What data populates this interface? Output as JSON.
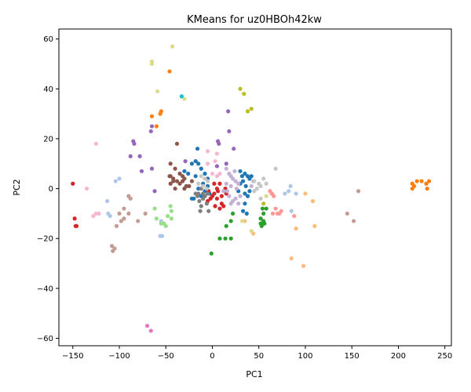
{
  "chart_data": {
    "type": "scatter",
    "title": "KMeans for uz0HBOh42kw",
    "xlabel": "PC1",
    "ylabel": "PC2",
    "xlim": [
      -165,
      257
    ],
    "ylim": [
      -63,
      64
    ],
    "xticks": [
      -150,
      -100,
      -50,
      0,
      50,
      100,
      150,
      200,
      250
    ],
    "yticks": [
      -60,
      -40,
      -20,
      0,
      20,
      40,
      60
    ],
    "grid": false,
    "legend": "none",
    "series": [
      {
        "color": "#1f77b4",
        "points": [
          [
            -22,
            10
          ],
          [
            -18,
            11
          ],
          [
            -15,
            10
          ],
          [
            -12,
            8
          ],
          [
            -8,
            6
          ],
          [
            -5,
            4
          ],
          [
            -10,
            2
          ],
          [
            -15,
            0
          ],
          [
            -20,
            -4
          ],
          [
            -22,
            -4
          ],
          [
            -12,
            -3
          ],
          [
            -8,
            -1
          ],
          [
            -5,
            1
          ],
          [
            -3,
            -2
          ],
          [
            -18,
            5
          ],
          [
            -16,
            16
          ],
          [
            30,
            7
          ],
          [
            32,
            5
          ],
          [
            35,
            6
          ],
          [
            38,
            5
          ],
          [
            40,
            4
          ],
          [
            42,
            5
          ],
          [
            30,
            2
          ],
          [
            33,
            3
          ],
          [
            36,
            1
          ],
          [
            35,
            -2
          ],
          [
            38,
            -3
          ],
          [
            40,
            -1
          ],
          [
            28,
            -1
          ],
          [
            35,
            -6
          ],
          [
            33,
            -9
          ],
          [
            37,
            -10
          ],
          [
            -30,
            7
          ],
          [
            -26,
            6
          ]
        ]
      },
      {
        "color": "#ff7f0e",
        "points": [
          [
            -65,
            29
          ],
          [
            -60,
            25
          ],
          [
            -56,
            30
          ],
          [
            -55,
            31
          ],
          [
            -46,
            47
          ],
          [
            215,
            2
          ],
          [
            215,
            0
          ],
          [
            217,
            1
          ],
          [
            220,
            3
          ],
          [
            225,
            3
          ],
          [
            230,
            2
          ],
          [
            231,
            0
          ],
          [
            233,
            3
          ]
        ]
      },
      {
        "color": "#aec7e8",
        "points": [
          [
            -113,
            -5
          ],
          [
            -110,
            -11
          ],
          [
            -112,
            -10
          ],
          [
            -100,
            4
          ],
          [
            -104,
            3
          ],
          [
            84,
            1
          ],
          [
            78,
            -2
          ],
          [
            82,
            -1
          ],
          [
            90,
            -2
          ],
          [
            85,
            -9
          ],
          [
            -55,
            -13
          ],
          [
            -56,
            -19
          ],
          [
            -54,
            -19
          ]
        ]
      },
      {
        "color": "#ffbb78",
        "points": [
          [
            100,
            -2
          ],
          [
            108,
            -5
          ],
          [
            110,
            -15
          ],
          [
            90,
            -16
          ],
          [
            98,
            -31
          ],
          [
            85,
            -28
          ],
          [
            44,
            -18
          ],
          [
            35,
            -13
          ]
        ]
      },
      {
        "color": "#2ca02c",
        "points": [
          [
            52,
            -12
          ],
          [
            55,
            -10
          ],
          [
            58,
            -8
          ],
          [
            54,
            -8
          ],
          [
            52,
            -14
          ],
          [
            56,
            -14
          ],
          [
            53,
            -15
          ],
          [
            55,
            -13
          ],
          [
            15,
            -15
          ],
          [
            20,
            -13
          ],
          [
            22,
            -10
          ],
          [
            8,
            -20
          ],
          [
            14,
            -20
          ],
          [
            -1,
            -26
          ],
          [
            20,
            -20
          ]
        ]
      },
      {
        "color": "#98df8a",
        "points": [
          [
            -45,
            -7
          ],
          [
            -44,
            -9
          ],
          [
            -44,
            -12
          ],
          [
            -48,
            -11
          ],
          [
            -52,
            -14
          ],
          [
            -55,
            -14
          ],
          [
            -50,
            -15
          ],
          [
            -60,
            -12
          ],
          [
            -62,
            -8
          ]
        ]
      },
      {
        "color": "#d62728",
        "points": [
          [
            -150,
            2
          ],
          [
            -148,
            -12
          ],
          [
            -147,
            -15
          ],
          [
            -146,
            -15
          ],
          [
            0,
            -3
          ],
          [
            5,
            -4
          ],
          [
            10,
            -6
          ],
          [
            8,
            -8
          ],
          [
            3,
            -7
          ],
          [
            -2,
            -4
          ],
          [
            -4,
            -1
          ],
          [
            2,
            -2
          ],
          [
            6,
            -1
          ],
          [
            10,
            -3
          ],
          [
            12,
            -7
          ],
          [
            15,
            -2
          ],
          [
            14,
            0
          ],
          [
            5,
            0
          ],
          [
            -5,
            -5
          ],
          [
            8,
            2
          ],
          [
            2,
            2
          ]
        ]
      },
      {
        "color": "#ff9896",
        "points": [
          [
            62,
            -1
          ],
          [
            64,
            -2
          ],
          [
            66,
            -3
          ],
          [
            68,
            -8
          ],
          [
            65,
            -10
          ],
          [
            70,
            -10
          ],
          [
            72,
            -10
          ],
          [
            74,
            -9
          ],
          [
            64,
            -2
          ],
          [
            88,
            -11
          ]
        ]
      },
      {
        "color": "#9467bd",
        "points": [
          [
            -85,
            19
          ],
          [
            -84,
            18
          ],
          [
            -78,
            13
          ],
          [
            -88,
            13
          ],
          [
            -76,
            7
          ],
          [
            -66,
            23
          ],
          [
            -65,
            25
          ],
          [
            -65,
            8
          ],
          [
            -62,
            -1
          ],
          [
            6,
            19
          ],
          [
            7,
            18
          ],
          [
            18,
            23
          ],
          [
            17,
            31
          ],
          [
            23,
            16
          ],
          [
            15,
            10
          ],
          [
            5,
            9
          ],
          [
            -29,
            11
          ]
        ]
      },
      {
        "color": "#c5b0d5",
        "points": [
          [
            15,
            8
          ],
          [
            18,
            6
          ],
          [
            22,
            4
          ],
          [
            25,
            3
          ],
          [
            28,
            2
          ],
          [
            20,
            1
          ],
          [
            16,
            -1
          ],
          [
            18,
            -3
          ],
          [
            22,
            -5
          ],
          [
            25,
            -4
          ],
          [
            28,
            -6
          ],
          [
            30,
            -3
          ],
          [
            26,
            0
          ],
          [
            15,
            2
          ],
          [
            20,
            -6
          ],
          [
            20,
            5
          ],
          [
            24,
            7
          ],
          [
            12,
            -1
          ],
          [
            42,
            1
          ],
          [
            44,
            3
          ]
        ]
      },
      {
        "color": "#8c564b",
        "points": [
          [
            -45,
            10
          ],
          [
            -40,
            8
          ],
          [
            -35,
            6
          ],
          [
            -32,
            5
          ],
          [
            -30,
            4
          ],
          [
            -35,
            2
          ],
          [
            -38,
            3
          ],
          [
            -42,
            3
          ],
          [
            -45,
            2
          ],
          [
            -40,
            0
          ],
          [
            -45,
            5
          ],
          [
            -28,
            1
          ],
          [
            -30,
            0
          ],
          [
            -22,
            3
          ],
          [
            -25,
            1
          ],
          [
            -38,
            18
          ],
          [
            -42,
            4
          ],
          [
            -46,
            5
          ],
          [
            -32,
            3
          ]
        ]
      },
      {
        "color": "#c49c94",
        "points": [
          [
            -100,
            -10
          ],
          [
            -95,
            -8
          ],
          [
            -98,
            -13
          ],
          [
            -95,
            -12
          ],
          [
            -103,
            -15
          ],
          [
            -90,
            -10
          ],
          [
            -80,
            -13
          ],
          [
            -90,
            -3
          ],
          [
            -88,
            -4
          ],
          [
            -105,
            -24
          ],
          [
            -107,
            -25
          ],
          [
            -108,
            -23
          ],
          [
            -72,
            -10
          ],
          [
            145,
            -10
          ],
          [
            152,
            -13
          ],
          [
            157,
            -1
          ]
        ]
      },
      {
        "color": "#e377c2",
        "points": [
          [
            -70,
            -55
          ],
          [
            -66,
            -57
          ]
        ]
      },
      {
        "color": "#f7b6d2",
        "points": [
          [
            -125,
            18
          ],
          [
            -125,
            -10
          ],
          [
            -128,
            -11
          ],
          [
            -122,
            -10
          ],
          [
            -135,
            0
          ],
          [
            5,
            5
          ],
          [
            8,
            6
          ],
          [
            -5,
            15
          ],
          [
            5,
            14
          ],
          [
            -5,
            10
          ],
          [
            3,
            11
          ],
          [
            0,
            6
          ]
        ]
      },
      {
        "color": "#7f7f7f",
        "points": [
          [
            -15,
            -2
          ],
          [
            -12,
            0
          ],
          [
            -10,
            -4
          ],
          [
            -14,
            -5
          ],
          [
            -12,
            -7
          ],
          [
            -8,
            -3
          ],
          [
            -6,
            -6
          ],
          [
            -18,
            -2
          ],
          [
            -10,
            -2
          ],
          [
            -16,
            -3
          ],
          [
            -5,
            -2
          ],
          [
            -13,
            -9
          ],
          [
            -4,
            -9
          ]
        ]
      },
      {
        "color": "#c7c7c7",
        "points": [
          [
            -12,
            5
          ],
          [
            -8,
            4
          ],
          [
            -5,
            3
          ],
          [
            -10,
            1
          ],
          [
            -15,
            2
          ],
          [
            45,
            3
          ],
          [
            50,
            2
          ],
          [
            52,
            1
          ],
          [
            48,
            0
          ],
          [
            55,
            4
          ],
          [
            -6,
            0
          ],
          [
            45,
            -1
          ],
          [
            68,
            8
          ],
          [
            52,
            -4
          ],
          [
            58,
            2
          ]
        ]
      },
      {
        "color": "#bcbd22",
        "points": [
          [
            30,
            40
          ],
          [
            34,
            38
          ],
          [
            38,
            31
          ],
          [
            42,
            32
          ],
          [
            55,
            -6
          ]
        ]
      },
      {
        "color": "#dbdb8d",
        "points": [
          [
            -65,
            51
          ],
          [
            -65,
            50
          ],
          [
            -43,
            57
          ],
          [
            -59,
            39
          ],
          [
            -30,
            36
          ],
          [
            42,
            -17
          ],
          [
            32,
            -13
          ],
          [
            58,
            -3
          ]
        ]
      },
      {
        "color": "#17becf",
        "points": [
          [
            -33,
            37
          ]
        ]
      }
    ]
  }
}
